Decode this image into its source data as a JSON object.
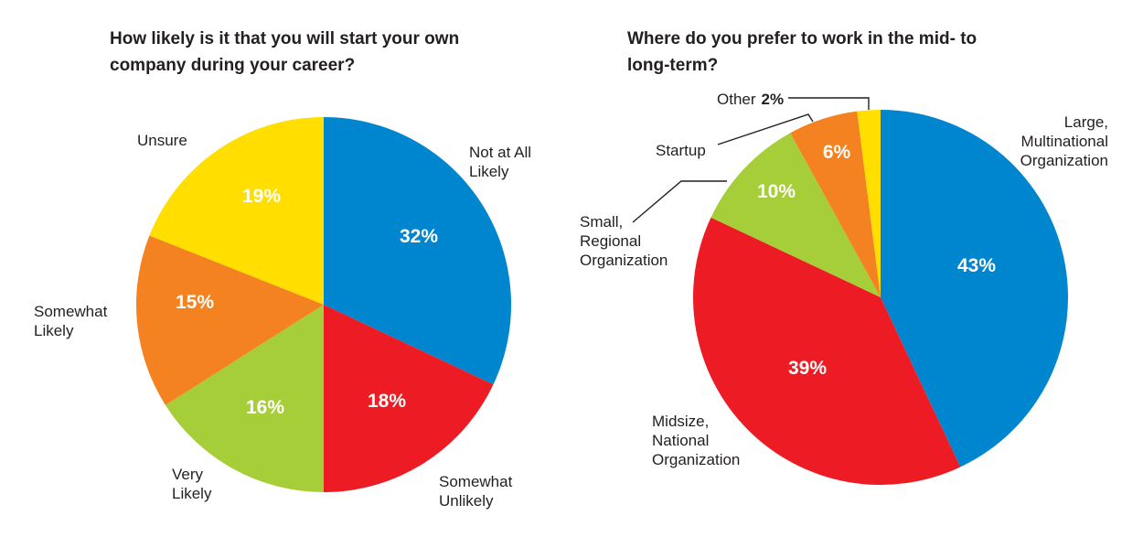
{
  "chart_data": [
    {
      "type": "pie",
      "title": "How likely is it that you will start your own company during your career?",
      "slices": [
        {
          "label": [
            "Not at All",
            "Likely"
          ],
          "value": 32,
          "value_label": "32%",
          "color": "#0085cf"
        },
        {
          "label": [
            "Somewhat",
            "Unlikely"
          ],
          "value": 18,
          "value_label": "18%",
          "color": "#ed1c24"
        },
        {
          "label": [
            "Very",
            "Likely"
          ],
          "value": 16,
          "value_label": "16%",
          "color": "#a6ce39"
        },
        {
          "label": [
            "Somewhat",
            "Likely"
          ],
          "value": 15,
          "value_label": "15%",
          "color": "#f58220"
        },
        {
          "label": [
            "Unsure"
          ],
          "value": 19,
          "value_label": "19%",
          "color": "#ffde00"
        }
      ]
    },
    {
      "type": "pie",
      "title": "Where do you prefer to work in the mid- to long-term?",
      "slices": [
        {
          "label": [
            "Large,",
            "Multinational",
            "Organization"
          ],
          "value": 43,
          "value_label": "43%",
          "color": "#0085cf"
        },
        {
          "label": [
            "Midsize,",
            "National",
            "Organization"
          ],
          "value": 39,
          "value_label": "39%",
          "color": "#ed1c24"
        },
        {
          "label": [
            "Small,",
            "Regional",
            "Organization"
          ],
          "value": 10,
          "value_label": "10%",
          "color": "#a6ce39"
        },
        {
          "label": [
            "Startup"
          ],
          "value": 6,
          "value_label": "6%",
          "color": "#f58220"
        },
        {
          "label": [
            "Other"
          ],
          "value": 2,
          "value_label": "2%",
          "color": "#ffde00"
        }
      ]
    }
  ]
}
